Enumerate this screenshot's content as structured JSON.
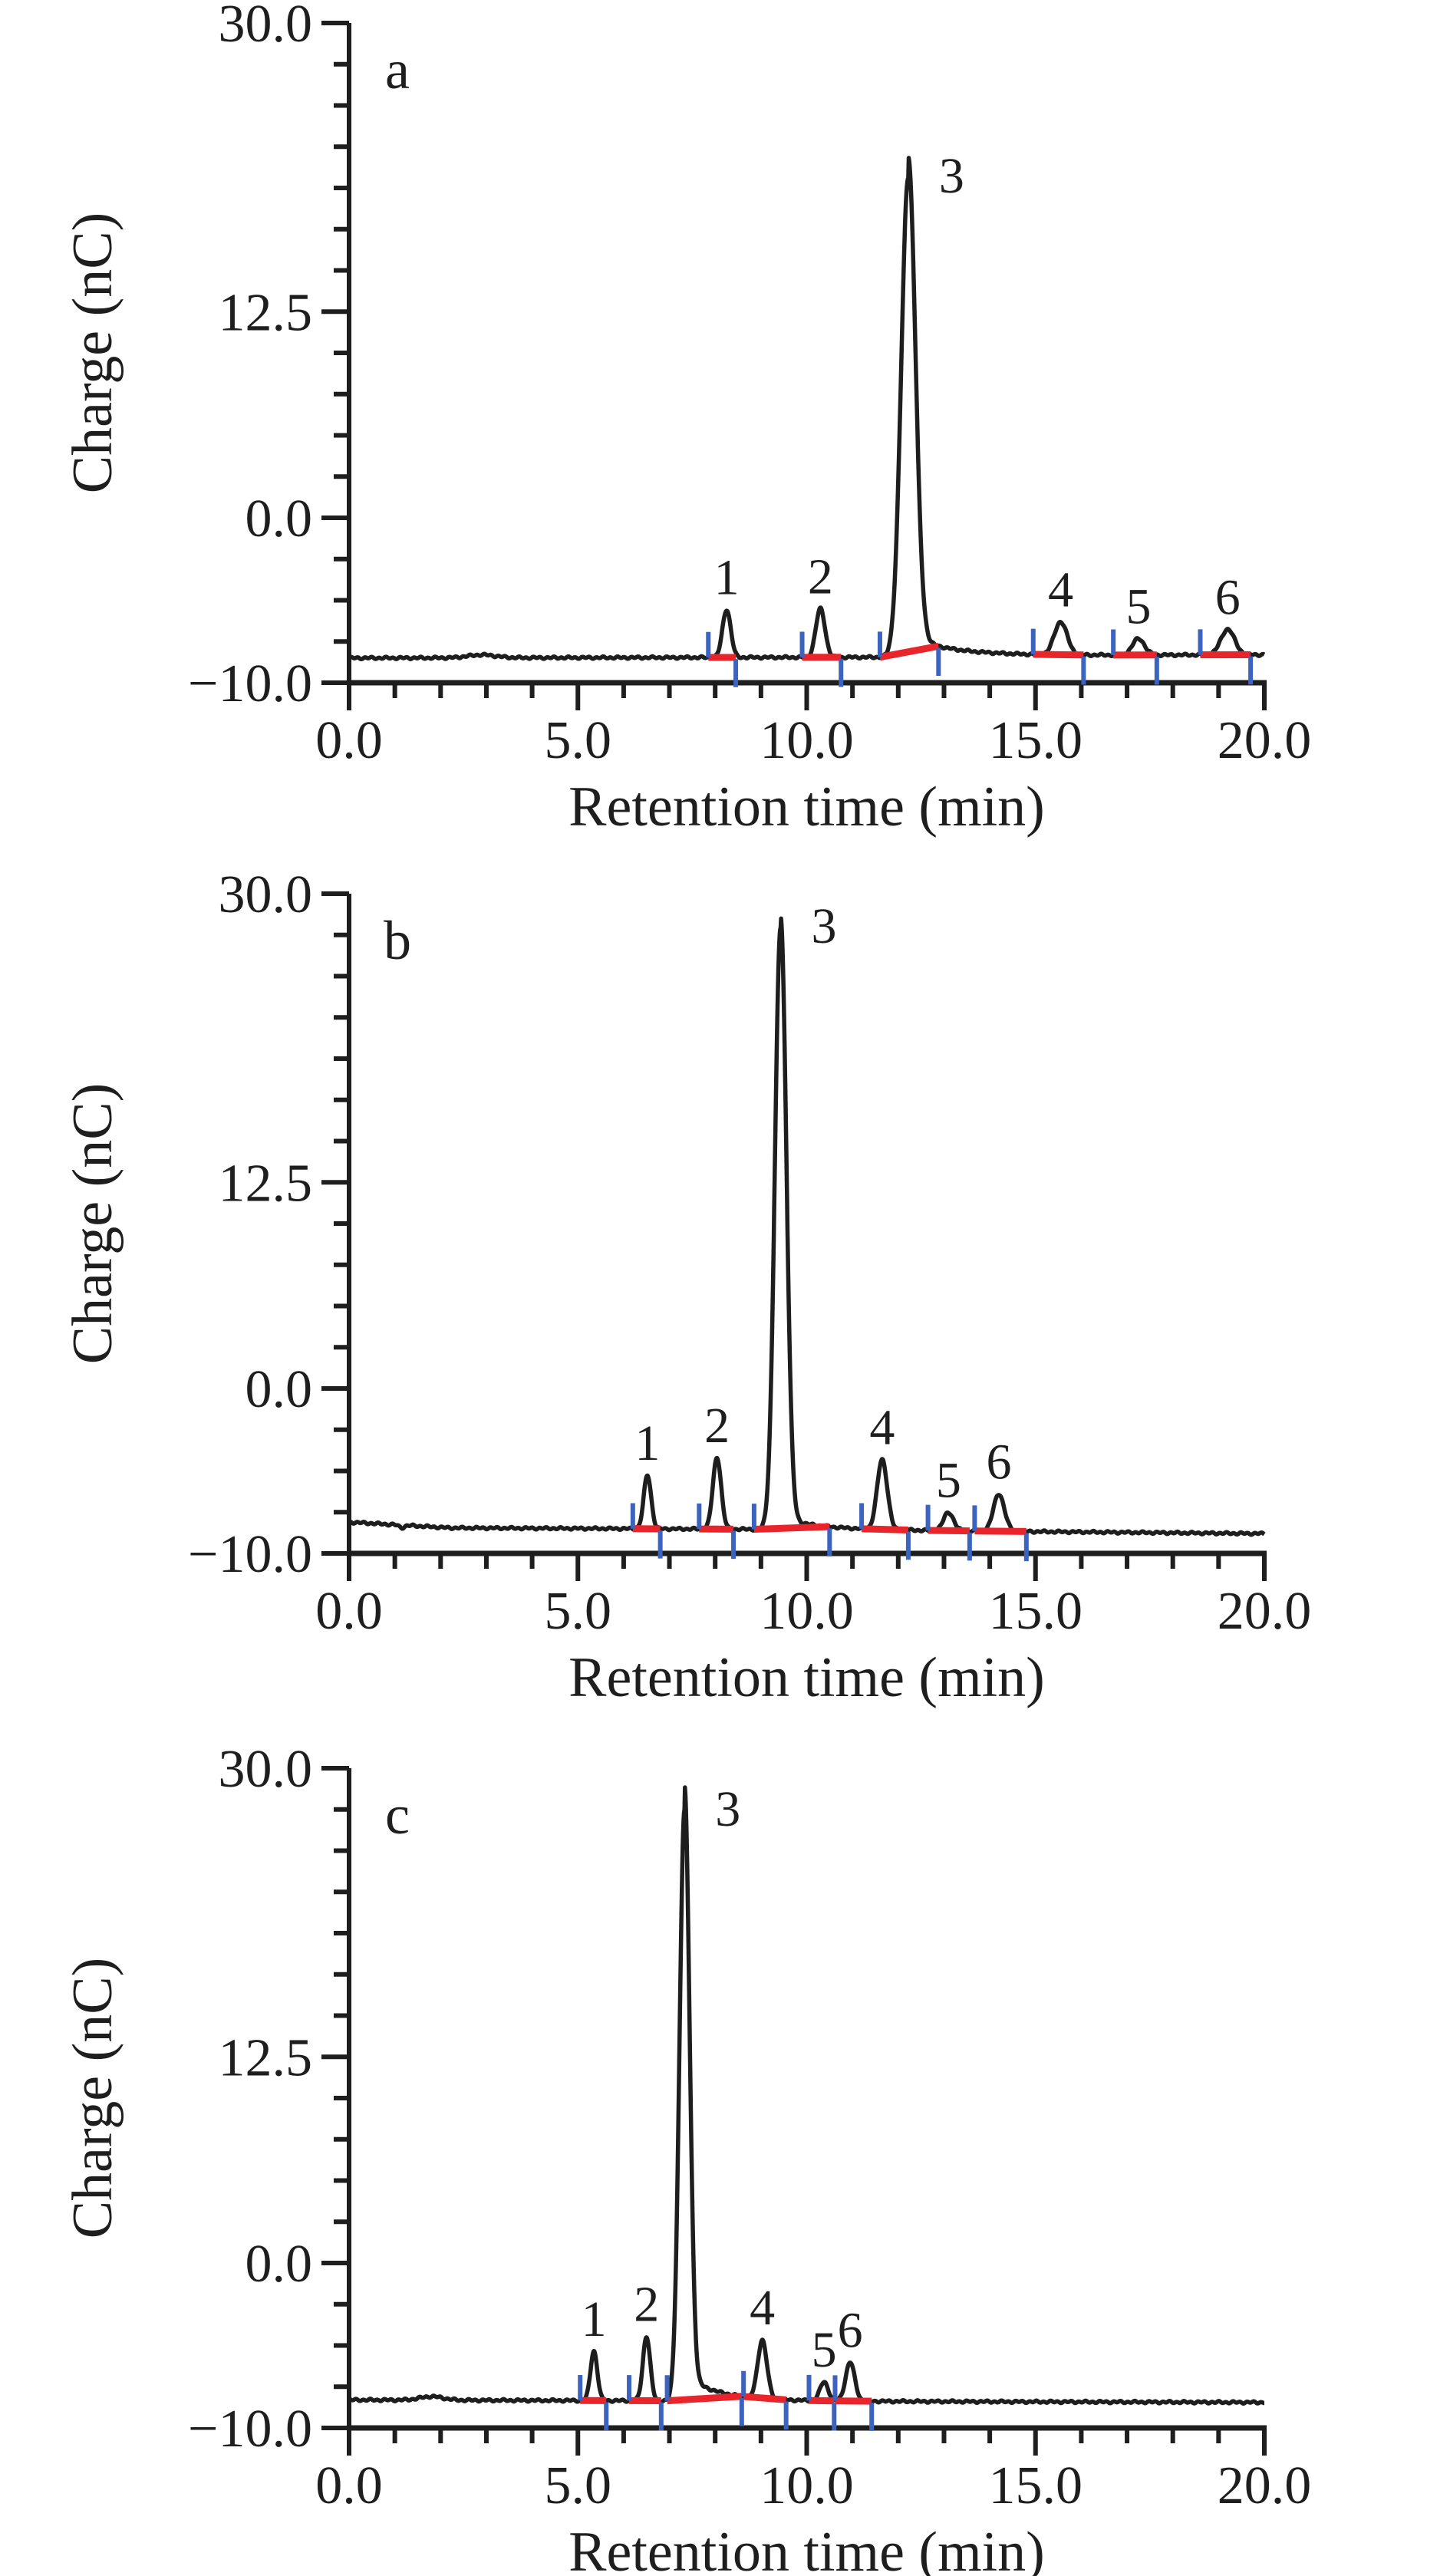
{
  "figure": {
    "xlabel": "Retention time (min)",
    "ylabel": "Charge (nC)",
    "colors": {
      "background": "#ffffff",
      "trace": "#1e1e1e",
      "axis": "#1e1e1e",
      "text": "#1e1e1e",
      "integration_baseline": "#e8252b",
      "peak_marker": "#3c63bd"
    },
    "x_axis": {
      "min": 0,
      "max": 20,
      "minor_step": 1,
      "major_ticks": [
        0,
        5,
        10,
        15,
        20
      ],
      "major_tick_labels": [
        "0.0",
        "5.0",
        "10.0",
        "15.0",
        "20.0"
      ]
    },
    "y_axis": {
      "min": -10,
      "max": 30,
      "minor_step": 2.5,
      "major_ticks": [
        30,
        12.5,
        0,
        -10
      ],
      "major_tick_labels": [
        "30.0",
        "12.5",
        "0.0",
        "−10.0"
      ]
    }
  },
  "chart_data": [
    {
      "type": "line",
      "panel_label": "a",
      "xlabel": "Retention time (min)",
      "ylabel": "Charge (nC)",
      "xlim": [
        0,
        20
      ],
      "ylim": [
        -10,
        30
      ],
      "baseline_nC": [
        [
          0,
          -8.5
        ],
        [
          12,
          -8.45
        ],
        [
          14,
          -8.35
        ],
        [
          20,
          -8.3
        ]
      ],
      "peak3_tail": {
        "amplitude": 1.3,
        "tau_min": 0.9
      },
      "extra_bumps": [
        [
          2.9,
          0.18,
          0.3
        ]
      ],
      "noise_amp": 0.045,
      "peaks": [
        {
          "label": "1",
          "retention_min": 8.25,
          "height_nC": 2.9,
          "sigma_min": 0.09,
          "start_min": 7.85,
          "end_min": 8.45
        },
        {
          "label": "2",
          "retention_min": 10.3,
          "height_nC": 2.95,
          "sigma_min": 0.1,
          "start_min": 9.9,
          "end_min": 10.75
        },
        {
          "label": "3",
          "retention_min": 12.22,
          "height_nC": 29.1,
          "sigma_min": 0.155,
          "start_min": 11.6,
          "end_min": 12.88
        },
        {
          "label": "4",
          "retention_min": 15.55,
          "height_nC": 2.0,
          "sigma_min": 0.14,
          "start_min": 14.95,
          "end_min": 16.05
        },
        {
          "label": "5",
          "retention_min": 17.25,
          "height_nC": 1.0,
          "sigma_min": 0.13,
          "start_min": 16.7,
          "end_min": 17.65
        },
        {
          "label": "6",
          "retention_min": 19.2,
          "height_nC": 1.55,
          "sigma_min": 0.15,
          "start_min": 18.6,
          "end_min": 19.7
        }
      ]
    },
    {
      "type": "line",
      "panel_label": "b",
      "xlabel": "Retention time (min)",
      "ylabel": "Charge (nC)",
      "xlim": [
        0,
        20
      ],
      "ylim": [
        -10,
        30
      ],
      "baseline_nC": [
        [
          0,
          -8.1
        ],
        [
          2.2,
          -8.45
        ],
        [
          10,
          -8.55
        ],
        [
          20,
          -8.8
        ]
      ],
      "peak3_tail": {
        "amplitude": 0.7,
        "tau_min": 0.8
      },
      "extra_bumps": [
        [
          1.15,
          -0.15,
          0.06
        ]
      ],
      "noise_amp": 0.045,
      "peaks": [
        {
          "label": "1",
          "retention_min": 6.52,
          "height_nC": 3.25,
          "sigma_min": 0.08,
          "start_min": 6.2,
          "end_min": 6.8
        },
        {
          "label": "2",
          "retention_min": 8.04,
          "height_nC": 4.35,
          "sigma_min": 0.09,
          "start_min": 7.65,
          "end_min": 8.4
        },
        {
          "label": "3",
          "retention_min": 9.43,
          "height_nC": 36.5,
          "sigma_min": 0.125,
          "start_min": 8.85,
          "end_min": 10.5
        },
        {
          "label": "4",
          "retention_min": 11.65,
          "height_nC": 4.25,
          "sigma_min": 0.11,
          "start_min": 11.2,
          "end_min": 12.22
        },
        {
          "label": "5",
          "retention_min": 13.1,
          "height_nC": 1.1,
          "sigma_min": 0.11,
          "start_min": 12.65,
          "end_min": 13.56
        },
        {
          "label": "6",
          "retention_min": 14.2,
          "height_nC": 2.25,
          "sigma_min": 0.12,
          "start_min": 13.67,
          "end_min": 14.8
        }
      ]
    },
    {
      "type": "line",
      "panel_label": "c",
      "xlabel": "Retention time (min)",
      "ylabel": "Charge (nC)",
      "xlim": [
        0,
        20
      ],
      "ylim": [
        -10,
        30
      ],
      "baseline_nC": [
        [
          0,
          -8.3
        ],
        [
          20,
          -8.45
        ]
      ],
      "peak3_tail": {
        "amplitude": 1.5,
        "tau_min": 0.75
      },
      "extra_bumps": [
        [
          1.8,
          0.22,
          0.25
        ]
      ],
      "noise_amp": 0.045,
      "peaks": [
        {
          "label": "1",
          "retention_min": 5.35,
          "height_nC": 3.0,
          "sigma_min": 0.075,
          "start_min": 5.05,
          "end_min": 5.62
        },
        {
          "label": "2",
          "retention_min": 6.5,
          "height_nC": 3.9,
          "sigma_min": 0.08,
          "start_min": 6.12,
          "end_min": 6.82
        },
        {
          "label": "3",
          "retention_min": 7.33,
          "height_nC": 35.8,
          "sigma_min": 0.11,
          "start_min": 6.95,
          "end_min": 8.58
        },
        {
          "label": "4",
          "retention_min": 9.03,
          "height_nC": 3.55,
          "sigma_min": 0.1,
          "start_min": 8.62,
          "end_min": 9.55
        },
        {
          "label": "5",
          "retention_min": 10.38,
          "height_nC": 1.15,
          "sigma_min": 0.09,
          "start_min": 10.05,
          "end_min": 10.6
        },
        {
          "label": "6",
          "retention_min": 10.95,
          "height_nC": 2.35,
          "sigma_min": 0.1,
          "start_min": 10.62,
          "end_min": 11.42
        }
      ]
    }
  ]
}
